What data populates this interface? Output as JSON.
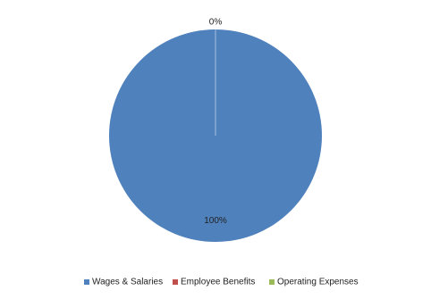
{
  "chart_data": {
    "type": "pie",
    "categories": [
      "Wages & Salaries",
      "Employee Benefits",
      "Operating Expenses"
    ],
    "values": [
      100,
      0,
      0
    ],
    "value_labels": [
      "100%",
      "0%",
      null
    ],
    "colors": [
      "#4f81bd",
      "#c0504d",
      "#9bbb59"
    ],
    "legend": "bottom"
  }
}
